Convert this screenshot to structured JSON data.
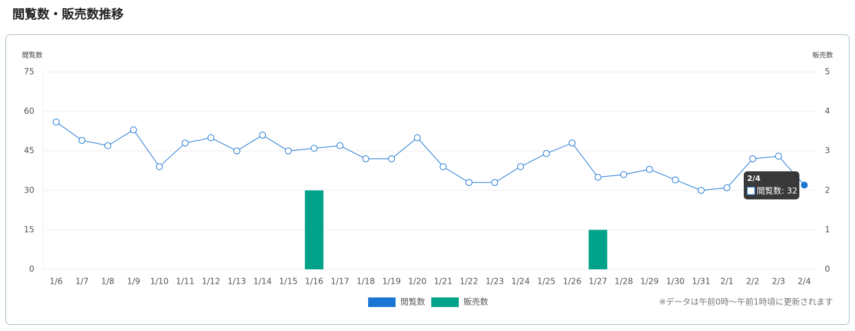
{
  "chart_data": {
    "type": "combo",
    "title": "閲覧数・販売数推移",
    "y_label": "閲覧数",
    "y2_label": "販売数",
    "categories": [
      "1/6",
      "1/7",
      "1/8",
      "1/9",
      "1/10",
      "1/11",
      "1/12",
      "1/13",
      "1/14",
      "1/15",
      "1/16",
      "1/17",
      "1/18",
      "1/19",
      "1/20",
      "1/21",
      "1/22",
      "1/23",
      "1/24",
      "1/25",
      "1/26",
      "1/27",
      "1/28",
      "1/29",
      "1/30",
      "1/31",
      "2/1",
      "2/2",
      "2/3",
      "2/4"
    ],
    "series": [
      {
        "name": "閲覧数",
        "type": "line",
        "color": "#1b76d3",
        "values": [
          56,
          49,
          47,
          53,
          39,
          48,
          50,
          45,
          51,
          45,
          46,
          47,
          42,
          42,
          50,
          39,
          33,
          33,
          39,
          44,
          48,
          35,
          36,
          38,
          34,
          30,
          31,
          42,
          43,
          32
        ]
      },
      {
        "name": "販売数",
        "type": "bar",
        "axis": "y2",
        "color": "#00a38a",
        "values": [
          0,
          0,
          0,
          0,
          0,
          0,
          0,
          0,
          0,
          0,
          2,
          0,
          0,
          0,
          0,
          0,
          0,
          0,
          0,
          0,
          0,
          1,
          0,
          0,
          0,
          0,
          0,
          0,
          0,
          0
        ]
      }
    ],
    "ylim": [
      0,
      75
    ],
    "yticks": [
      0,
      15,
      30,
      45,
      60,
      75
    ],
    "y2lim": [
      0,
      5
    ],
    "y2ticks": [
      0,
      1,
      2,
      3,
      4,
      5
    ],
    "grid": true,
    "tooltip": {
      "title": "2/4",
      "label": "閲覧数: 32"
    },
    "note": "※データは午前0時～午前1時頃に更新されます"
  }
}
